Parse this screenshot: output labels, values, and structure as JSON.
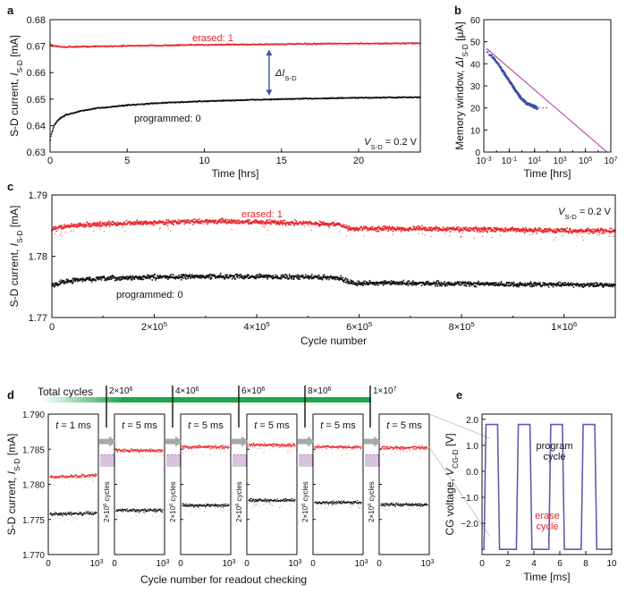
{
  "colors": {
    "erased": "#e8262b",
    "programmed": "#111111",
    "window": "#3b4ea8",
    "fit": "#b03aa8",
    "bar": "#1aa84a",
    "cg": "#6a55b5"
  },
  "chart_data": [
    {
      "id": "a",
      "panel_label": "a",
      "type": "line",
      "xlabel": "Time [hrs]",
      "ylabel_main": "S-D current,",
      "ylabel_sym": "I",
      "ylabel_sub": "S-D",
      "ylabel_unit": "[mA]",
      "xlim": [
        0,
        24
      ],
      "ylim": [
        0.63,
        0.68
      ],
      "xticks": [
        "0",
        "5",
        "10",
        "15",
        "20"
      ],
      "yticks": [
        "0.63",
        "0.64",
        "0.65",
        "0.66",
        "0.67",
        "0.68"
      ],
      "series": [
        {
          "name": "erased: 1",
          "x": [
            0,
            0.5,
            1,
            2,
            4,
            6,
            8,
            10,
            12,
            14,
            16,
            18,
            20,
            22,
            24
          ],
          "y": [
            0.6705,
            0.6698,
            0.6697,
            0.6698,
            0.67,
            0.6702,
            0.6703,
            0.6705,
            0.6706,
            0.6707,
            0.6708,
            0.6709,
            0.671,
            0.671,
            0.6711
          ]
        },
        {
          "name": "programmed: 0",
          "x": [
            0,
            0.05,
            0.15,
            0.3,
            0.6,
            1,
            2,
            3,
            5,
            7,
            10,
            13,
            16,
            19,
            22,
            24
          ],
          "y": [
            0.634,
            0.636,
            0.638,
            0.6405,
            0.6425,
            0.644,
            0.6455,
            0.6465,
            0.6477,
            0.6485,
            0.6492,
            0.6497,
            0.6501,
            0.6504,
            0.6506,
            0.6507
          ]
        }
      ],
      "annotations": {
        "delta_sym": "ΔI",
        "delta_sub": "S-D",
        "v_sym": "V",
        "v_sub": "S-D",
        "v_val": " = 0.2 V"
      }
    },
    {
      "id": "b",
      "panel_label": "b",
      "type": "scatter",
      "xlabel": "Time [hrs]",
      "ylabel_main": "Memory window,",
      "ylabel_sym": "ΔI",
      "ylabel_sub": "S-D",
      "ylabel_unit": "[μA]",
      "xscale": "log",
      "xlim_exp": [
        -3,
        7
      ],
      "ylim": [
        0,
        60
      ],
      "xticks": [
        {
          "b": "10",
          "e": "-3"
        },
        {
          "b": "10",
          "e": "-1"
        },
        {
          "b": "10",
          "e": "1"
        },
        {
          "b": "10",
          "e": "3"
        },
        {
          "b": "10",
          "e": "5"
        },
        {
          "b": "10",
          "e": "7"
        }
      ],
      "yticks": [
        "0",
        "10",
        "20",
        "30",
        "40",
        "50",
        "60"
      ],
      "series": [
        {
          "name": "memory window",
          "log_t": [
            -2.7,
            -2.4,
            -2,
            -1.6,
            -1.2,
            -0.8,
            -0.4,
            0,
            0.4,
            0.8,
            1.2
          ],
          "y": [
            45,
            43.5,
            41,
            37.5,
            34,
            30.5,
            27,
            24,
            22,
            21,
            20
          ]
        },
        {
          "name": "fit",
          "log_t": [
            -2.8,
            6.7
          ],
          "y": [
            47,
            0
          ]
        }
      ]
    },
    {
      "id": "c",
      "panel_label": "c",
      "type": "line",
      "xlabel": "Cycle number",
      "ylabel_main": "S-D current,",
      "ylabel_sym": "I",
      "ylabel_sub": "S-D",
      "ylabel_unit": "[mA]",
      "xlim": [
        0,
        1100000
      ],
      "ylim": [
        1.77,
        1.79
      ],
      "xticks": [
        {
          "v": 0,
          "t": "0"
        },
        {
          "v": 200000,
          "b": "2×10",
          "e": "5"
        },
        {
          "v": 400000,
          "b": "4×10",
          "e": "5"
        },
        {
          "v": 600000,
          "b": "6×10",
          "e": "5"
        },
        {
          "v": 800000,
          "b": "8×10",
          "e": "5"
        },
        {
          "v": 1000000,
          "b": "1×10",
          "e": "6"
        }
      ],
      "yticks": [
        "1.77",
        "1.78",
        "1.79"
      ],
      "series": [
        {
          "name": "erased: 1",
          "x": [
            0,
            20000,
            60000,
            120000,
            200000,
            300000,
            400000,
            500000,
            560000,
            580000,
            600000,
            700000,
            800000,
            900000,
            1000000,
            1100000
          ],
          "y": [
            1.7843,
            1.7848,
            1.7851,
            1.7853,
            1.7855,
            1.7857,
            1.7856,
            1.7854,
            1.7852,
            1.7845,
            1.7845,
            1.7845,
            1.7844,
            1.7843,
            1.7842,
            1.7841
          ]
        },
        {
          "name": "programmed: 0",
          "x": [
            0,
            20000,
            60000,
            120000,
            200000,
            300000,
            400000,
            500000,
            560000,
            580000,
            600000,
            700000,
            800000,
            900000,
            1000000,
            1100000
          ],
          "y": [
            1.7752,
            1.7758,
            1.7762,
            1.7764,
            1.7766,
            1.7767,
            1.7767,
            1.7766,
            1.7765,
            1.7758,
            1.7756,
            1.7756,
            1.7755,
            1.7754,
            1.7754,
            1.7753
          ]
        }
      ],
      "annotations": {
        "v_sym": "V",
        "v_sub": "S-D",
        "v_val": " = 0.2 V"
      }
    },
    {
      "id": "d",
      "panel_label": "d",
      "type": "line",
      "title": "Total cycles",
      "xlabel": "Cycle number for readout checking",
      "ylabel_main": "S-D current,",
      "ylabel_sym": "I",
      "ylabel_sub": "S-D",
      "ylabel_unit": "[mA]",
      "ylim": [
        1.77,
        1.79
      ],
      "yticks": [
        "1.770",
        "1.775",
        "1.780",
        "1.785",
        "1.790"
      ],
      "subplot_xticks": [
        {
          "t": "0"
        },
        {
          "b": "10",
          "e": "3"
        }
      ],
      "milestones": [
        {
          "b": "2×10",
          "e": "6"
        },
        {
          "b": "4×10",
          "e": "6"
        },
        {
          "b": "6×10",
          "e": "6"
        },
        {
          "b": "8×10",
          "e": "6"
        },
        {
          "b": "1×10",
          "e": "7"
        }
      ],
      "gap_labels": [
        {
          "b": "2×10",
          "e": "6",
          "s": " cycles"
        },
        {
          "b": "2×10",
          "e": "6",
          "s": " cycles"
        },
        {
          "b": "2×10",
          "e": "6",
          "s": " cycles"
        },
        {
          "b": "2×10",
          "e": "6",
          "s": " cycles"
        },
        {
          "b": "2×10",
          "e": "6",
          "s": " cycles"
        }
      ],
      "subplots": [
        {
          "pulse": "t",
          "val": " = 1 ms",
          "erased": 1.781,
          "programmed": 1.7757
        },
        {
          "pulse": "t",
          "val": " = 5 ms",
          "erased": 1.7848,
          "programmed": 1.7763
        },
        {
          "pulse": "t",
          "val": " = 5 ms",
          "erased": 1.7853,
          "programmed": 1.777
        },
        {
          "pulse": "t",
          "val": " = 5 ms",
          "erased": 1.7856,
          "programmed": 1.7777
        },
        {
          "pulse": "t",
          "val": " = 5 ms",
          "erased": 1.7853,
          "programmed": 1.7774
        },
        {
          "pulse": "t",
          "val": " = 5 ms",
          "erased": 1.7852,
          "programmed": 1.7771
        }
      ]
    },
    {
      "id": "e",
      "panel_label": "e",
      "type": "line",
      "xlabel": "Time [ms]",
      "ylabel_main": "CG voltage,",
      "ylabel_sym": "V",
      "ylabel_sub": "CG-D",
      "ylabel_unit": "[V]",
      "xlim": [
        0,
        10
      ],
      "ylim": [
        -3.2,
        2.2
      ],
      "xticks": [
        "0",
        "2",
        "4",
        "6",
        "8",
        "10"
      ],
      "yticks": [
        {
          "v": 2,
          "t": "2.0"
        },
        {
          "v": 1,
          "t": "1.0"
        },
        {
          "v": 0,
          "t": "0.0"
        },
        {
          "v": -1,
          "t": "−1.0"
        },
        {
          "v": -2,
          "t": "−2.0"
        }
      ],
      "series": [
        {
          "name": "CG voltage",
          "x": [
            0,
            0.15,
            0.3,
            1.2,
            1.35,
            1.5,
            2.5,
            2.65,
            2.8,
            3.7,
            3.85,
            4.0,
            5.0,
            5.15,
            5.3,
            6.2,
            6.35,
            6.5,
            7.5,
            7.65,
            7.8,
            8.7,
            8.85,
            9.0,
            9.85,
            10
          ],
          "y": [
            -3.0,
            -3.0,
            1.8,
            1.8,
            -3.0,
            -3.0,
            -3.0,
            -3.0,
            1.8,
            1.8,
            -3.0,
            -3.0,
            -3.0,
            -3.0,
            1.8,
            1.8,
            -3.0,
            -3.0,
            -3.0,
            -3.0,
            1.8,
            1.8,
            -3.0,
            -3.0,
            -3.0,
            -3.0
          ]
        }
      ],
      "annotations": {
        "program_1": "program",
        "program_2": "cycle",
        "erase_1": "erase",
        "erase_2": "cycle"
      }
    }
  ]
}
